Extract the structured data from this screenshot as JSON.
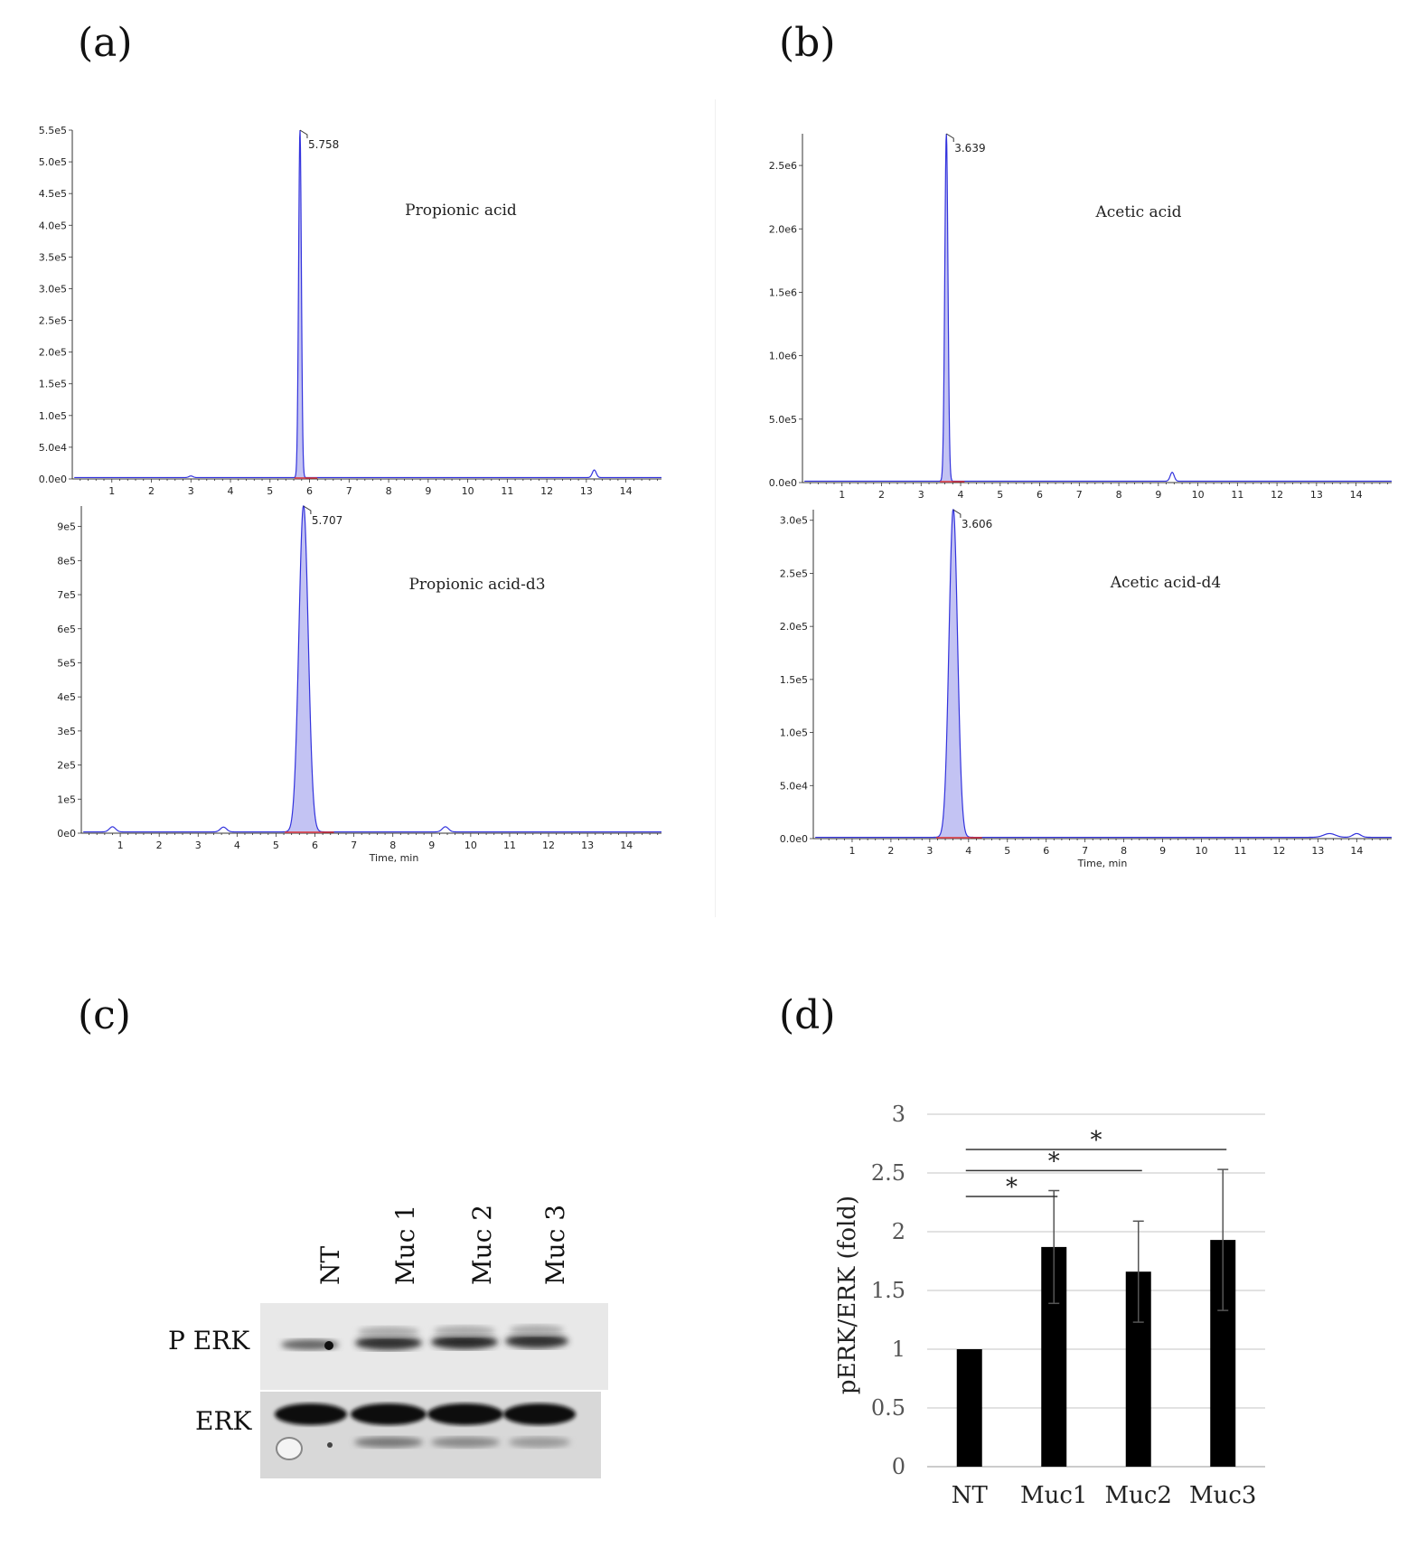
{
  "panels": {
    "a": "(a)",
    "b": "(b)",
    "c": "(c)",
    "d": "(d)"
  },
  "chart_data": [
    {
      "id": "a-top",
      "type": "line",
      "annotation": "Propionic acid",
      "peak_label": "5.758",
      "x_ticks": [
        1,
        2,
        3,
        4,
        5,
        6,
        7,
        8,
        9,
        10,
        11,
        12,
        13,
        14
      ],
      "xlim": [
        0,
        14.9
      ],
      "y_ticks": [
        {
          "v": 0,
          "t": "0.0e0"
        },
        {
          "v": 50000,
          "t": "5.0e4"
        },
        {
          "v": 100000,
          "t": "1.0e5"
        },
        {
          "v": 150000,
          "t": "1.5e5"
        },
        {
          "v": 200000,
          "t": "2.0e5"
        },
        {
          "v": 250000,
          "t": "2.5e5"
        },
        {
          "v": 300000,
          "t": "3.0e5"
        },
        {
          "v": 350000,
          "t": "3.5e5"
        },
        {
          "v": 400000,
          "t": "4.0e5"
        },
        {
          "v": 450000,
          "t": "4.5e5"
        },
        {
          "v": 500000,
          "t": "5.0e5"
        },
        {
          "v": 550000,
          "t": "5.5e5"
        }
      ],
      "ylim": [
        0,
        550000
      ],
      "peak": {
        "x": 5.758,
        "y": 550000,
        "sigma": 0.035
      },
      "minor_peaks": [
        {
          "x": 13.2,
          "y": 12000,
          "sigma": 0.05
        },
        {
          "x": 3.0,
          "y": 2500,
          "sigma": 0.05
        }
      ],
      "xlabel": ""
    },
    {
      "id": "a-bottom",
      "type": "line",
      "annotation": "Propionic acid-d3",
      "peak_label": "5.707",
      "x_ticks": [
        1,
        2,
        3,
        4,
        5,
        6,
        7,
        8,
        9,
        10,
        11,
        12,
        13,
        14
      ],
      "xlim": [
        0,
        14.9
      ],
      "y_ticks": [
        {
          "v": 0,
          "t": "0e0"
        },
        {
          "v": 100000,
          "t": "1e5"
        },
        {
          "v": 200000,
          "t": "2e5"
        },
        {
          "v": 300000,
          "t": "3e5"
        },
        {
          "v": 400000,
          "t": "4e5"
        },
        {
          "v": 500000,
          "t": "5e5"
        },
        {
          "v": 600000,
          "t": "6e5"
        },
        {
          "v": 700000,
          "t": "7e5"
        },
        {
          "v": 800000,
          "t": "8e5"
        },
        {
          "v": 900000,
          "t": "9e5"
        }
      ],
      "ylim": [
        0,
        960000
      ],
      "peak": {
        "x": 5.707,
        "y": 960000,
        "sigma": 0.12
      },
      "minor_peaks": [
        {
          "x": 0.8,
          "y": 15000,
          "sigma": 0.08
        },
        {
          "x": 3.65,
          "y": 14000,
          "sigma": 0.08
        },
        {
          "x": 9.35,
          "y": 15000,
          "sigma": 0.08
        }
      ],
      "xlabel": "Time, min"
    },
    {
      "id": "b-top",
      "type": "line",
      "annotation": "Acetic acid",
      "peak_label": "3.639",
      "x_ticks": [
        1,
        2,
        3,
        4,
        5,
        6,
        7,
        8,
        9,
        10,
        11,
        12,
        13,
        14
      ],
      "xlim": [
        0,
        14.9
      ],
      "y_ticks": [
        {
          "v": 0,
          "t": "0.0e0"
        },
        {
          "v": 500000,
          "t": "5.0e5"
        },
        {
          "v": 1000000,
          "t": "1.0e6"
        },
        {
          "v": 1500000,
          "t": "1.5e6"
        },
        {
          "v": 2000000,
          "t": "2.0e6"
        },
        {
          "v": 2500000,
          "t": "2.5e6"
        }
      ],
      "ylim": [
        0,
        2750000
      ],
      "peak": {
        "x": 3.639,
        "y": 2750000,
        "sigma": 0.04
      },
      "minor_peaks": [
        {
          "x": 9.35,
          "y": 70000,
          "sigma": 0.05
        }
      ],
      "xlabel": ""
    },
    {
      "id": "b-bottom",
      "type": "line",
      "annotation": "Acetic acid-d4",
      "peak_label": "3.606",
      "x_ticks": [
        1,
        2,
        3,
        4,
        5,
        6,
        7,
        8,
        9,
        10,
        11,
        12,
        13,
        14
      ],
      "xlim": [
        0,
        14.9
      ],
      "y_ticks": [
        {
          "v": 0,
          "t": "0.0e0"
        },
        {
          "v": 50000,
          "t": "5.0e4"
        },
        {
          "v": 100000,
          "t": "1.0e5"
        },
        {
          "v": 150000,
          "t": "1.5e5"
        },
        {
          "v": 200000,
          "t": "2.0e5"
        },
        {
          "v": 250000,
          "t": "2.5e5"
        },
        {
          "v": 300000,
          "t": "3.0e5"
        }
      ],
      "ylim": [
        0,
        310000
      ],
      "peak": {
        "x": 3.606,
        "y": 310000,
        "sigma": 0.11
      },
      "minor_peaks": [
        {
          "x": 13.3,
          "y": 3500,
          "sigma": 0.15
        },
        {
          "x": 14.0,
          "y": 3500,
          "sigma": 0.1
        }
      ],
      "xlabel": "Time, min"
    },
    {
      "id": "d",
      "type": "bar",
      "categories": [
        "NT",
        "Muc1",
        "Muc2",
        "Muc3"
      ],
      "values": [
        1.0,
        1.87,
        1.66,
        1.93
      ],
      "errors": [
        0,
        0.48,
        0.43,
        0.6
      ],
      "ylim": [
        0,
        3
      ],
      "y_ticks": [
        0,
        0.5,
        1,
        1.5,
        2,
        2.5,
        3
      ],
      "ylabel": "pERK/ERK (fold)",
      "significance": [
        {
          "from": "NT",
          "to": "Muc1",
          "label": "*"
        },
        {
          "from": "NT",
          "to": "Muc2",
          "label": "*"
        },
        {
          "from": "NT",
          "to": "Muc3",
          "label": "*"
        }
      ],
      "grid": true
    }
  ],
  "western_blot": {
    "lanes": [
      "NT",
      "Muc 1",
      "Muc 2",
      "Muc 3"
    ],
    "rows": [
      "P ERK",
      "ERK"
    ]
  },
  "colors": {
    "trace": "#3333dd",
    "fill": "#a9a9ee",
    "bar": "#000000",
    "grid": "#d9d9d9"
  }
}
